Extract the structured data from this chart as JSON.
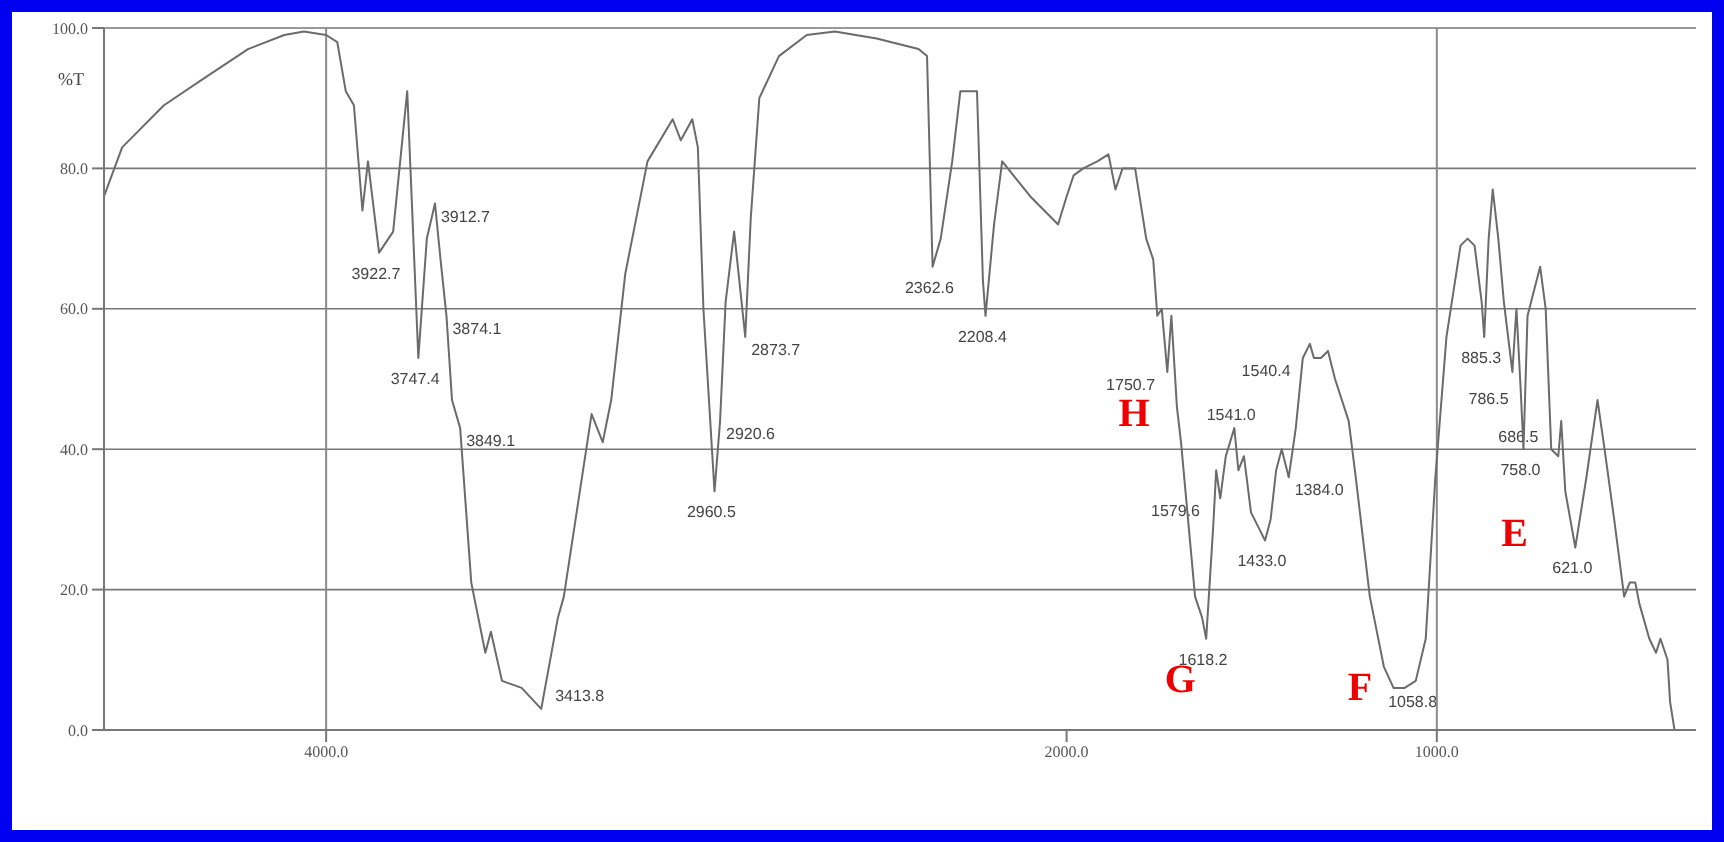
{
  "chart_data": {
    "type": "line",
    "ylabel": "%T",
    "xlim": [
      4600,
      300
    ],
    "xticks": [
      {
        "value": 4000,
        "label": "4000.0"
      },
      {
        "value": 2000,
        "label": "2000.0"
      },
      {
        "value": 1000,
        "label": "1000.0"
      }
    ],
    "ylim": [
      0,
      100
    ],
    "yticks": [
      {
        "value": 0,
        "label": "0.0"
      },
      {
        "value": 20,
        "label": "20.0"
      },
      {
        "value": 40,
        "label": "40.0"
      },
      {
        "value": 60,
        "label": "60.0"
      },
      {
        "value": 80,
        "label": "80.0"
      },
      {
        "value": 100,
        "label": "100.0"
      }
    ],
    "grid": "y",
    "legend": false,
    "ref_lines": [
      {
        "axis": "x",
        "value": 4000,
        "color": "#8a8a8a"
      },
      {
        "axis": "x",
        "value": 1000,
        "color": "#8a8a8a"
      }
    ],
    "annotations": [
      "H",
      "G",
      "F",
      "E",
      {
        "text": "3922.7",
        "x": 3857,
        "y": 68
      },
      {
        "text": "3747.4",
        "x": 3751,
        "y": 53
      },
      {
        "text": "3912.7",
        "x": 3706,
        "y": 75
      },
      {
        "text": "3874.1",
        "x": 3675,
        "y": 59
      },
      {
        "text": "3849.1",
        "x": 3638,
        "y": 43
      },
      {
        "text": "3413.8",
        "x": 3419,
        "y": 3
      },
      {
        "text": "2960.5",
        "x": 2951,
        "y": 34
      },
      {
        "text": "2920.6",
        "x": 2936,
        "y": 44
      },
      {
        "text": "2873.7",
        "x": 2868,
        "y": 56
      },
      {
        "text": "2362.6",
        "x": 2362,
        "y": 66
      },
      {
        "text": "2208.4",
        "x": 2219,
        "y": 59
      },
      {
        "text": "1750.7",
        "x": 1728,
        "y": 51
      },
      {
        "text": "1618.2",
        "x": 1623,
        "y": 13
      },
      {
        "text": "1579.6",
        "x": 1585,
        "y": 33
      },
      {
        "text": "1541.0",
        "x": 1547,
        "y": 43
      },
      {
        "text": "1433.0",
        "x": 1464,
        "y": 27
      },
      {
        "text": "1384.0",
        "x": 1400,
        "y": 36
      },
      {
        "text": "1540.4",
        "x": 1362,
        "y": 53
      },
      {
        "text": "1058.8",
        "x": 1057,
        "y": 7
      },
      {
        "text": "885.3",
        "x": 872,
        "y": 56
      },
      {
        "text": "786.5",
        "x": 774,
        "y": 49
      },
      {
        "text": "758.0",
        "x": 766,
        "y": 40
      },
      {
        "text": "686.5",
        "x": 672,
        "y": 39
      },
      {
        "text": "621.0",
        "x": 626,
        "y": 26
      }
    ],
    "series": [
      {
        "color": "#6b6b6b",
        "x": [
          4600,
          4551,
          4438,
          4325,
          4211,
          4113,
          4060,
          4000,
          3970,
          3947,
          3925,
          3902,
          3887,
          3857,
          3819,
          3781,
          3751,
          3728,
          3706,
          3691,
          3675,
          3660,
          3638,
          3608,
          3570,
          3555,
          3525,
          3472,
          3419,
          3374,
          3358,
          3283,
          3253,
          3230,
          3192,
          3132,
          3064,
          3042,
          3011,
          2996,
          2981,
          2966,
          2951,
          2936,
          2921,
          2898,
          2868,
          2853,
          2830,
          2777,
          2702,
          2626,
          2513,
          2400,
          2377,
          2362,
          2340,
          2309,
          2287,
          2242,
          2226,
          2219,
          2196,
          2174,
          2098,
          2023,
          2000,
          1981,
          1955,
          1917,
          1887,
          1868,
          1849,
          1815,
          1785,
          1766,
          1755,
          1743,
          1728,
          1717,
          1702,
          1691,
          1653,
          1634,
          1623,
          1604,
          1596,
          1585,
          1570,
          1547,
          1536,
          1521,
          1502,
          1483,
          1464,
          1449,
          1434,
          1419,
          1400,
          1381,
          1362,
          1343,
          1332,
          1313,
          1294,
          1275,
          1238,
          1219,
          1181,
          1143,
          1117,
          1087,
          1057,
          1030,
          1004,
          974,
          936,
          917,
          898,
          879,
          872,
          860,
          849,
          834,
          819,
          796,
          785,
          774,
          766,
          755,
          721,
          706,
          691,
          672,
          664,
          653,
          626,
          596,
          566,
          547,
          521,
          494,
          479,
          464,
          453,
          426,
          408,
          396,
          377,
          370,
          358
        ],
        "values": [
          76,
          83,
          89,
          93,
          97,
          99,
          99.5,
          99,
          98,
          91,
          89,
          74,
          81,
          68,
          71,
          91,
          53,
          70,
          75,
          67,
          59,
          47,
          43,
          21,
          11,
          14,
          7,
          6,
          3,
          16,
          19,
          45,
          41,
          47,
          65,
          81,
          87,
          84,
          87,
          83,
          60,
          47,
          34,
          44,
          61,
          71,
          56,
          73,
          90,
          96,
          99,
          99.5,
          98.5,
          97,
          96,
          66,
          70,
          81,
          91,
          91,
          64,
          59,
          72,
          81,
          76,
          72,
          76,
          79,
          80,
          81,
          82,
          77,
          80,
          80,
          70,
          67,
          59,
          60,
          51,
          59,
          46,
          41,
          19,
          16,
          13,
          29,
          37,
          33,
          39,
          43,
          37,
          39,
          31,
          29,
          27,
          30,
          37,
          40,
          36,
          43,
          53,
          55,
          53,
          53,
          54,
          50,
          44,
          36,
          19,
          9,
          6,
          6,
          7,
          13,
          36,
          56,
          69,
          70,
          69,
          61,
          56,
          70,
          77,
          70,
          61,
          51,
          60,
          49,
          40,
          59,
          66,
          60,
          40,
          39,
          44,
          34,
          26,
          36,
          47,
          40,
          30,
          19,
          21,
          21,
          18,
          13,
          11,
          13,
          10,
          4,
          0
        ]
      }
    ]
  }
}
